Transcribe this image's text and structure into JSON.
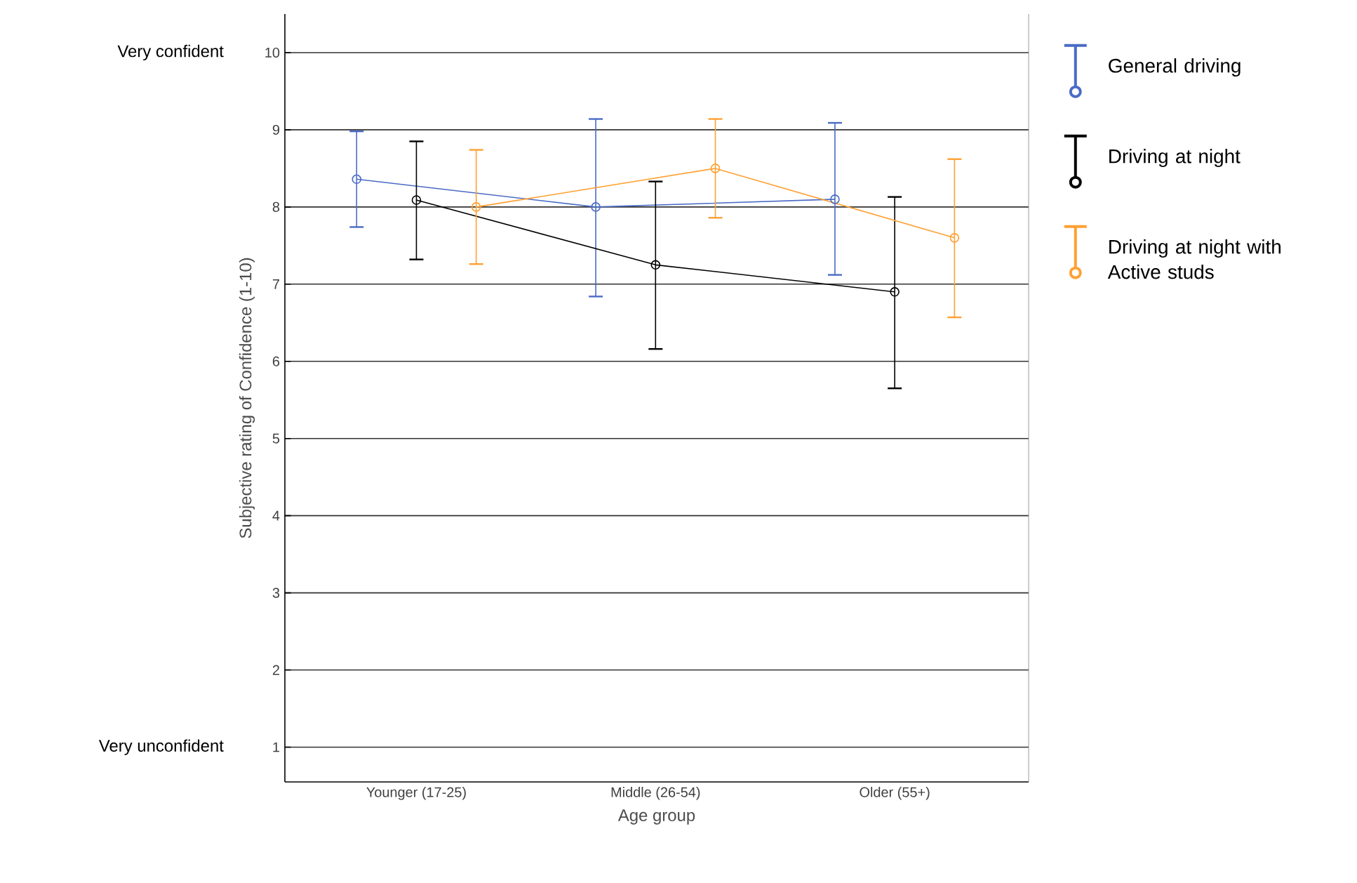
{
  "chart_data": {
    "type": "line",
    "xlabel": "Age group",
    "ylabel": "Subjective rating of Confidence (1-10)",
    "categories": [
      "Younger (17-25)",
      "Middle (26-54)",
      "Older (55+)"
    ],
    "series": [
      {
        "name": "General driving",
        "color": "#4a6bc5",
        "values": [
          8.36,
          8.0,
          8.1
        ],
        "errors": [
          [
            7.74,
            8.98
          ],
          [
            6.84,
            9.14
          ],
          [
            7.12,
            9.09
          ]
        ]
      },
      {
        "name": "Driving at night",
        "color": "#000000",
        "values": [
          8.09,
          7.25,
          6.9
        ],
        "errors": [
          [
            7.32,
            8.85
          ],
          [
            6.16,
            8.33
          ],
          [
            5.65,
            8.13
          ]
        ]
      },
      {
        "name": "Driving at night with Active studs",
        "color": "#ffa033",
        "values": [
          8.0,
          8.5,
          7.6
        ],
        "errors": [
          [
            7.26,
            8.74
          ],
          [
            7.86,
            9.14
          ],
          [
            6.57,
            8.62
          ]
        ]
      }
    ],
    "ylim": [
      0.55,
      10.5
    ],
    "yticks": [
      1,
      2,
      3,
      4,
      5,
      6,
      7,
      8,
      9,
      10
    ],
    "annotations": [
      "Very confident",
      "Very unconfident"
    ],
    "grid": "y",
    "legend": "right",
    "marker": "circle",
    "line_style": "solid"
  }
}
